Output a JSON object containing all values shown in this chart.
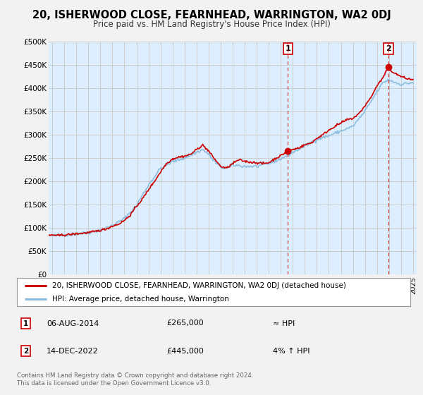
{
  "title": "20, ISHERWOOD CLOSE, FEARNHEAD, WARRINGTON, WA2 0DJ",
  "subtitle": "Price paid vs. HM Land Registry's House Price Index (HPI)",
  "legend_line1": "20, ISHERWOOD CLOSE, FEARNHEAD, WARRINGTON, WA2 0DJ (detached house)",
  "legend_line2": "HPI: Average price, detached house, Warrington",
  "annotation1_label": "1",
  "annotation1_date": "06-AUG-2014",
  "annotation1_price": "£265,000",
  "annotation1_hpi": "≈ HPI",
  "annotation2_label": "2",
  "annotation2_date": "14-DEC-2022",
  "annotation2_price": "£445,000",
  "annotation2_hpi": "4% ↑ HPI",
  "footer1": "Contains HM Land Registry data © Crown copyright and database right 2024.",
  "footer2": "This data is licensed under the Open Government Licence v3.0.",
  "fig_bg_color": "#f2f2f2",
  "plot_bg_color": "#ddeeff",
  "grid_color": "#cccccc",
  "line_color": "#cc0000",
  "hpi_color": "#88bbdd",
  "marker_color": "#cc0000",
  "vline_color": "#cc0000",
  "ylim": [
    0,
    500000
  ],
  "yticks": [
    0,
    50000,
    100000,
    150000,
    200000,
    250000,
    300000,
    350000,
    400000,
    450000,
    500000
  ],
  "ytick_labels": [
    "£0",
    "£50K",
    "£100K",
    "£150K",
    "£200K",
    "£250K",
    "£300K",
    "£350K",
    "£400K",
    "£450K",
    "£500K"
  ],
  "vline1_x": 2014.6,
  "vline2_x": 2022.96,
  "marker1_x": 2014.6,
  "marker1_y": 265000,
  "marker2_x": 2022.96,
  "marker2_y": 445000,
  "xmin": 1994.7,
  "xmax": 2025.3
}
